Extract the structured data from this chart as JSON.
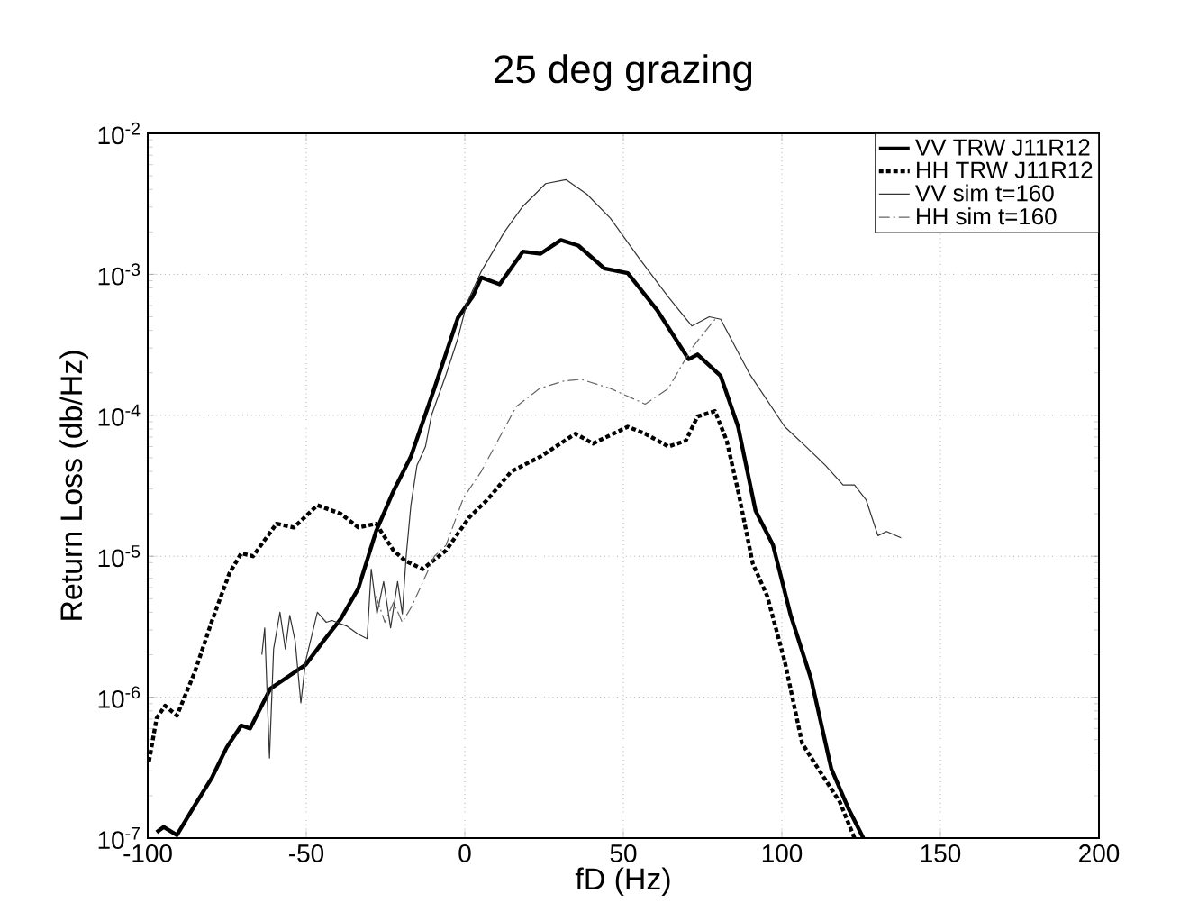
{
  "chart_data": {
    "type": "line",
    "title": "25 deg grazing",
    "xlabel": "fD (Hz)",
    "ylabel": "Return Loss (db/Hz)",
    "log": "y",
    "grid": true,
    "legend": "top right",
    "xlim": [
      -100,
      200
    ],
    "xticks": [
      -100,
      -50,
      0,
      50,
      100,
      150,
      200
    ],
    "ylim": [
      1e-07,
      0.01
    ],
    "yticks": [
      {
        "value": 1e-07,
        "label": "10$^{-7}$"
      },
      {
        "value": 1e-06,
        "label": "10$^{-6}$"
      },
      {
        "value": 1e-05,
        "label": "10$^{-5}$"
      },
      {
        "value": 0.0001,
        "label": "10$^{-4}$"
      },
      {
        "value": 0.001,
        "label": "10$^{-3}$"
      },
      {
        "value": 0.01,
        "label": "10$^{-2}$"
      }
    ],
    "series": [
      {
        "name": "VV TRW J11R12",
        "color": "#000000",
        "line_style": "solid",
        "x": [
          -97.2,
          -95,
          -90.8,
          -85.2,
          -79.7,
          -75.1,
          -70.5,
          -67.7,
          -61.3,
          -55.7,
          -50.2,
          -44.6,
          -39.1,
          -33.6,
          -28,
          -22.5,
          -17,
          -9.6,
          -2.2,
          2.4,
          5.2,
          11,
          18.3,
          23.9,
          30.3,
          35.8,
          44,
          51.4,
          60.6,
          70.6,
          73.4,
          80.7,
          86.2,
          91.7,
          97.2,
          102.8,
          109.2,
          115.6,
          121.1,
          125.7
        ],
        "values": [
          1.1e-07,
          1.2e-07,
          1.05e-07,
          1.7e-07,
          2.7e-07,
          4.4e-07,
          6.3e-07,
          6e-07,
          1.15e-06,
          1.4e-06,
          1.7e-06,
          2.5e-06,
          3.6e-06,
          5.9e-06,
          1.5e-05,
          2.9e-05,
          5.1e-05,
          0.000155,
          0.00049,
          0.00069,
          0.00095,
          0.00085,
          0.00145,
          0.0014,
          0.00175,
          0.0016,
          0.0011,
          0.00102,
          0.00056,
          0.00025,
          0.00027,
          0.00019,
          8.3e-05,
          2.1e-05,
          1.2e-05,
          3.8e-06,
          1.35e-06,
          3.1e-07,
          1.6e-07,
          1e-07
        ]
      },
      {
        "name": "HH TRW J11R12",
        "color": "#000000",
        "line_style": "dotted",
        "x": [
          -99.6,
          -97.2,
          -94.5,
          -90.8,
          -85.2,
          -79.7,
          -74.2,
          -70.5,
          -66.8,
          -59.4,
          -53.9,
          -46.5,
          -39.1,
          -33.6,
          -28,
          -22.5,
          -18.8,
          -13.3,
          -5.9,
          1.5,
          7,
          14.7,
          23.9,
          34.9,
          40.4,
          51.4,
          56.9,
          64.2,
          69.7,
          73.4,
          78.9,
          82.6,
          86.2,
          90.8,
          95.4,
          100.9,
          106.4,
          111.9,
          118.3,
          122.9
        ],
        "values": [
          3.5e-07,
          7.1e-07,
          8.7e-07,
          7.4e-07,
          1.5e-06,
          3.5e-06,
          7.6e-06,
          1.05e-05,
          1e-05,
          1.7e-05,
          1.6e-05,
          2.3e-05,
          2e-05,
          1.6e-05,
          1.7e-05,
          1.1e-05,
          9.3e-06,
          8.1e-06,
          1.1e-05,
          1.9e-05,
          2.5e-05,
          4e-05,
          5.1e-05,
          7.4e-05,
          6.3e-05,
          8.3e-05,
          7.4e-05,
          6e-05,
          6.6e-05,
          9.8e-05,
          0.000107,
          6.6e-05,
          2.9e-05,
          8.9e-06,
          5.2e-06,
          1.8e-06,
          4.7e-07,
          3e-07,
          1.8e-07,
          1e-07
        ]
      },
      {
        "name": "VV sim t=160",
        "color": "#333333",
        "line_style": "solid",
        "x": [
          -64,
          -63.1,
          -61.6,
          -60.3,
          -58.3,
          -56.6,
          -55.2,
          -53.5,
          -51.7,
          -50.2,
          -46.5,
          -43.7,
          -41.9,
          -37.3,
          -33.6,
          -30.8,
          -29.5,
          -27.7,
          -25.6,
          -23.4,
          -21.2,
          -19.7,
          -18.5,
          -17,
          -15.1,
          -12.4,
          -10.5,
          -5.9,
          -2.2,
          0.6,
          5.2,
          12.5,
          18.1,
          25.5,
          31.9,
          38.5,
          45.9,
          55,
          64.2,
          71.6,
          77.1,
          80.7,
          89.9,
          100.9,
          108.3,
          113.8,
          119.3,
          122.9,
          126.6,
          130.3,
          133,
          137.6
        ],
        "values": [
          2e-06,
          3.1e-06,
          3.7e-07,
          2.2e-06,
          4e-06,
          2.2e-06,
          3.8e-06,
          2.5e-06,
          9.1e-07,
          1.8e-06,
          4e-06,
          3.4e-06,
          3.5e-06,
          3.2e-06,
          2.8e-06,
          2.6e-06,
          8.1e-06,
          3.9e-06,
          6.6e-06,
          3.1e-06,
          6.6e-06,
          3.9e-06,
          1e-05,
          2.3e-05,
          4.4e-05,
          6e-05,
          0.0001,
          0.000195,
          0.00035,
          0.00062,
          0.00105,
          0.002,
          0.003,
          0.0044,
          0.0047,
          0.0037,
          0.0025,
          0.0013,
          0.00069,
          0.00043,
          0.0005,
          0.00048,
          0.000195,
          8.3e-05,
          5.8e-05,
          4.4e-05,
          3.2e-05,
          3.2e-05,
          2.5e-05,
          1.4e-05,
          1.5e-05,
          1.35e-05
        ]
      },
      {
        "name": "HH sim t=160",
        "color": "#666666",
        "line_style": "dashed",
        "x": [
          -28,
          -25.2,
          -22.5,
          -19.7,
          -17,
          -13.3,
          -9.6,
          -5.9,
          -0.4,
          5.2,
          10.7,
          16.2,
          23.6,
          31.2,
          36.7,
          45.9,
          56.9,
          64.2,
          71.6,
          78.9
        ],
        "values": [
          5.2e-06,
          3.4e-06,
          4.7e-06,
          3.4e-06,
          4.3e-06,
          6.5e-06,
          1e-05,
          1.2e-05,
          2.6e-05,
          4e-05,
          6.8e-05,
          0.000115,
          0.000155,
          0.000175,
          0.00018,
          0.000155,
          0.00012,
          0.000155,
          0.0003,
          0.00048
        ]
      }
    ]
  }
}
